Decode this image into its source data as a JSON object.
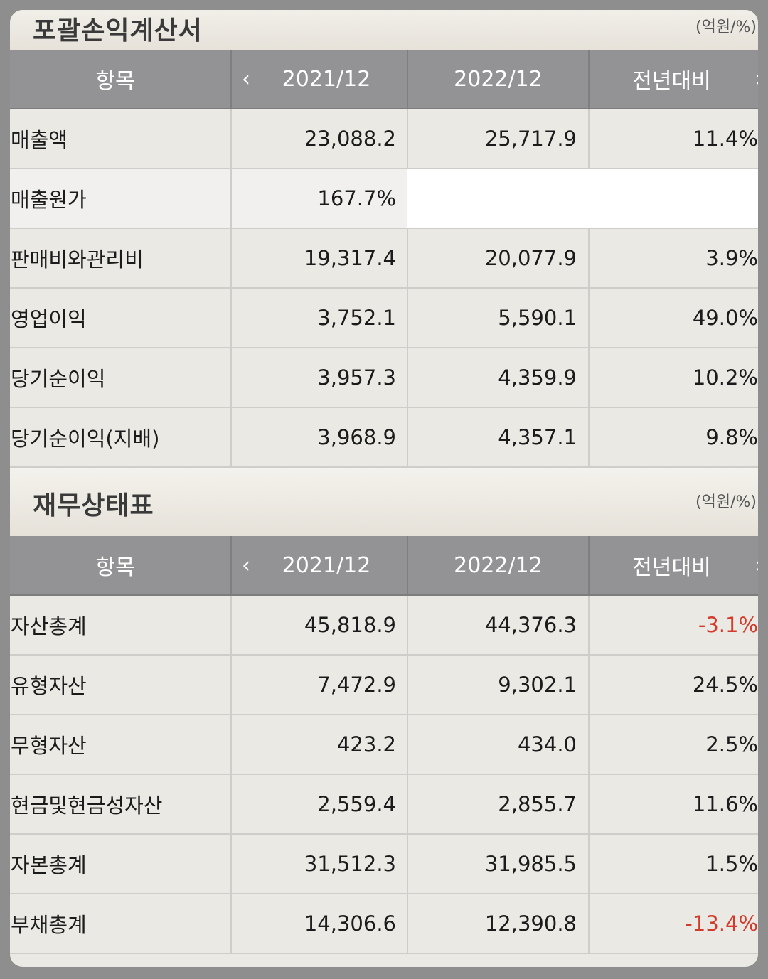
{
  "income": {
    "title": "포괄손익계산서",
    "unit": "(억원/%)",
    "header": {
      "item": "항목",
      "col1": "2021/12",
      "col2": "2022/12",
      "col3": "전년대비"
    },
    "rows": [
      {
        "label": "매출액",
        "v2021": "23,088.2",
        "v2022": "25,717.9",
        "yoy": "11.4%"
      },
      {
        "label": "매출원가",
        "v2021": "167.7%",
        "v2022": "",
        "yoy": ""
      },
      {
        "label": "판매비와관리비",
        "v2021": "19,317.4",
        "v2022": "20,077.9",
        "yoy": "3.9%"
      },
      {
        "label": "영업이익",
        "v2021": "3,752.1",
        "v2022": "5,590.1",
        "yoy": "49.0%"
      },
      {
        "label": "당기순이익",
        "v2021": "3,957.3",
        "v2022": "4,359.9",
        "yoy": "10.2%"
      },
      {
        "label": "당기순이익(지배)",
        "v2021": "3,968.9",
        "v2022": "4,357.1",
        "yoy": "9.8%"
      }
    ]
  },
  "balance": {
    "title": "재무상태표",
    "unit": "(억원/%)",
    "header": {
      "item": "항목",
      "col1": "2021/12",
      "col2": "2022/12",
      "col3": "전년대비"
    },
    "rows": [
      {
        "label": "자산총계",
        "v2021": "45,818.9",
        "v2022": "44,376.3",
        "yoy": "-3.1%"
      },
      {
        "label": "유형자산",
        "v2021": "7,472.9",
        "v2022": "9,302.1",
        "yoy": "24.5%"
      },
      {
        "label": "무형자산",
        "v2021": "423.2",
        "v2022": "434.0",
        "yoy": "2.5%"
      },
      {
        "label": "현금및현금성자산",
        "v2021": "2,559.4",
        "v2022": "2,855.7",
        "yoy": "11.6%"
      },
      {
        "label": "자본총계",
        "v2021": "31,512.3",
        "v2022": "31,985.5",
        "yoy": "1.5%"
      },
      {
        "label": "부채총계",
        "v2021": "14,306.6",
        "v2022": "12,390.8",
        "yoy": "-13.4%"
      }
    ]
  },
  "colors": {
    "negative": "#d33a2c",
    "header_bg": "#939396",
    "card_bg": "#ebe9e4"
  },
  "icons": {
    "prev": "chevron-left-icon",
    "next": "chevron-right-icon"
  }
}
